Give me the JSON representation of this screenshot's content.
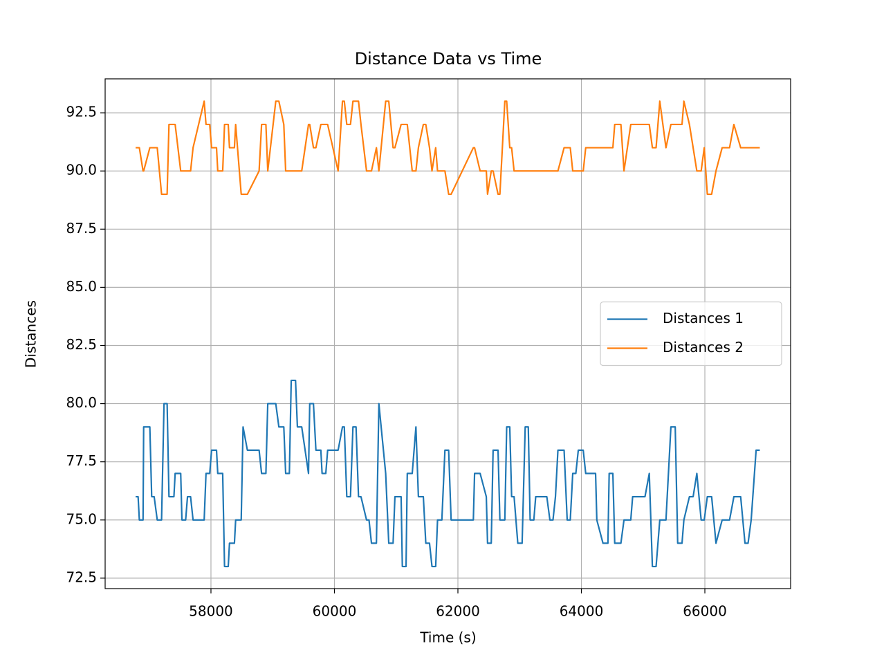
{
  "chart_data": {
    "type": "line",
    "title": "Distance Data vs Time",
    "xlabel": "Time (s)",
    "ylabel": "Distances",
    "x": [
      56780,
      56820,
      56840,
      56900,
      56910,
      57010,
      57040,
      57080,
      57130,
      57200,
      57240,
      57290,
      57320,
      57400,
      57420,
      57510,
      57530,
      57590,
      57620,
      57670,
      57710,
      57890,
      57920,
      57980,
      58010,
      58090,
      58110,
      58190,
      58220,
      58280,
      58300,
      58380,
      58400,
      58490,
      58520,
      58590,
      58780,
      58820,
      58890,
      58920,
      59050,
      59100,
      59180,
      59210,
      59270,
      59300,
      59370,
      59400,
      59470,
      59580,
      59600,
      59660,
      59700,
      59780,
      59800,
      59860,
      59890,
      60060,
      60130,
      60160,
      60200,
      60260,
      60300,
      60350,
      60390,
      60430,
      60520,
      60560,
      60600,
      60680,
      60720,
      60830,
      60880,
      60950,
      60980,
      61080,
      61100,
      61160,
      61180,
      61260,
      61320,
      61360,
      61440,
      61480,
      61540,
      61580,
      61640,
      61670,
      61740,
      61790,
      61850,
      61890,
      62250,
      62270,
      62360,
      62460,
      62480,
      62540,
      62570,
      62650,
      62680,
      62760,
      62790,
      62840,
      62870,
      62910,
      62970,
      63040,
      63090,
      63140,
      63170,
      63230,
      63260,
      63440,
      63490,
      63540,
      63580,
      63620,
      63720,
      63770,
      63820,
      63860,
      63910,
      63950,
      64030,
      64070,
      64230,
      64250,
      64350,
      64430,
      64450,
      64510,
      64540,
      64640,
      64690,
      64800,
      64830,
      65030,
      65100,
      65150,
      65210,
      65270,
      65370,
      65450,
      65520,
      65560,
      65630,
      65660,
      65750,
      65810,
      65870,
      65940,
      65990,
      66040,
      66110,
      66180,
      66280,
      66400,
      66470,
      66580,
      66650,
      66700,
      66750,
      66830,
      66890
    ],
    "series": [
      {
        "name": "Distances 1",
        "color": "#1f77b4",
        "values": [
          76,
          76,
          75,
          75,
          79,
          79,
          76,
          76,
          75,
          75,
          80,
          80,
          76,
          76,
          77,
          77,
          75,
          75,
          76,
          76,
          75,
          75,
          77,
          77,
          78,
          78,
          77,
          77,
          73,
          73,
          74,
          74,
          75,
          75,
          79,
          78,
          78,
          77,
          77,
          80,
          80,
          79,
          79,
          77,
          77,
          81,
          81,
          79,
          79,
          77,
          80,
          80,
          78,
          78,
          77,
          77,
          78,
          78,
          79,
          79,
          76,
          76,
          79,
          79,
          76,
          76,
          75,
          75,
          74,
          74,
          80,
          77,
          74,
          74,
          76,
          76,
          73,
          73,
          77,
          77,
          79,
          76,
          76,
          74,
          74,
          73,
          73,
          75,
          75,
          78,
          78,
          75,
          75,
          77,
          77,
          76,
          74,
          74,
          78,
          78,
          75,
          75,
          79,
          79,
          76,
          76,
          74,
          74,
          79,
          79,
          75,
          75,
          76,
          76,
          75,
          75,
          76,
          78,
          78,
          75,
          75,
          77,
          77,
          78,
          78,
          77,
          77,
          75,
          74,
          74,
          77,
          77,
          74,
          74,
          75,
          75,
          76,
          76,
          77,
          73,
          73,
          75,
          75,
          79,
          79,
          74,
          74,
          75,
          76,
          76,
          77,
          75,
          75,
          76,
          76,
          74,
          75,
          75,
          76,
          76,
          74,
          74,
          75,
          78,
          78
        ]
      },
      {
        "name": "Distances 2",
        "color": "#ff7f0e",
        "values": [
          91,
          91,
          91,
          90,
          90,
          91,
          91,
          91,
          91,
          89,
          89,
          89,
          92,
          92,
          92,
          90,
          90,
          90,
          90,
          90,
          91,
          93,
          92,
          92,
          91,
          91,
          90,
          90,
          92,
          92,
          91,
          91,
          92,
          89,
          89,
          89,
          90,
          92,
          92,
          90,
          93,
          93,
          92,
          90,
          90,
          90,
          90,
          90,
          90,
          92,
          92,
          91,
          91,
          92,
          92,
          92,
          92,
          90,
          93,
          93,
          92,
          92,
          93,
          93,
          93,
          92,
          90,
          90,
          90,
          91,
          90,
          93,
          93,
          91,
          91,
          92,
          92,
          92,
          92,
          90,
          90,
          91,
          92,
          92,
          91,
          90,
          91,
          90,
          90,
          90,
          89,
          89,
          91,
          91,
          90,
          90,
          89,
          90,
          90,
          89,
          89,
          93,
          93,
          91,
          91,
          90,
          90,
          90,
          90,
          90,
          90,
          90,
          90,
          90,
          90,
          90,
          90,
          90,
          91,
          91,
          91,
          90,
          90,
          90,
          90,
          91,
          91,
          91,
          91,
          91,
          91,
          91,
          92,
          92,
          90,
          92,
          92,
          92,
          92,
          91,
          91,
          93,
          91,
          92,
          92,
          92,
          92,
          93,
          92,
          91,
          90,
          90,
          91,
          89,
          89,
          90,
          91,
          91,
          92,
          91,
          91,
          91,
          91,
          91,
          91
        ]
      }
    ],
    "xlim": [
      56286,
      67389
    ],
    "ylim": [
      72.05,
      93.96
    ],
    "xticks": [
      58000,
      60000,
      62000,
      64000,
      66000
    ],
    "yticks": [
      72.5,
      {
        "value": 75,
        "label": "75.0"
      },
      77.5,
      {
        "value": 80,
        "label": "80.0"
      },
      82.5,
      {
        "value": 85,
        "label": "85.0"
      },
      87.5,
      {
        "value": 90,
        "label": "90.0"
      },
      92.5
    ],
    "grid": true,
    "legend": "center right"
  }
}
